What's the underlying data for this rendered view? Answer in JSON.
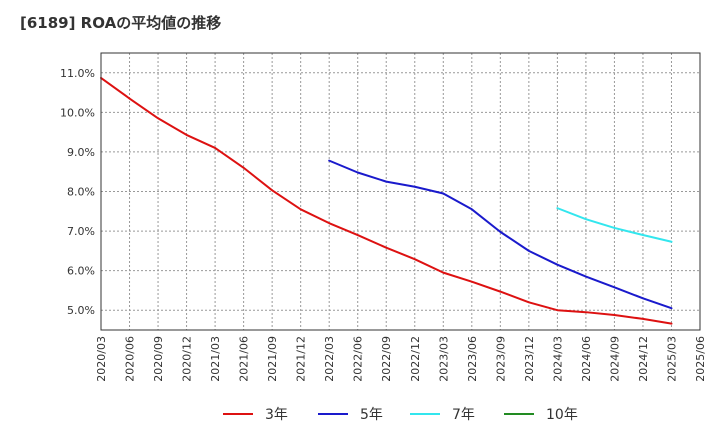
{
  "chart_data": {
    "type": "line",
    "title": "[6189]  ROAの平均値の推移",
    "xlabel": "",
    "ylabel": "",
    "ylim": [
      4.5,
      11.5
    ],
    "yticks": [
      5.0,
      6.0,
      7.0,
      8.0,
      9.0,
      10.0,
      11.0
    ],
    "ytick_labels": [
      "5.0%",
      "6.0%",
      "7.0%",
      "8.0%",
      "9.0%",
      "10.0%",
      "11.0%"
    ],
    "x_labels": [
      "2020/03",
      "2020/06",
      "2020/09",
      "2020/12",
      "2021/03",
      "2021/06",
      "2021/09",
      "2021/12",
      "2022/03",
      "2022/06",
      "2022/09",
      "2022/12",
      "2023/03",
      "2023/06",
      "2023/09",
      "2023/12",
      "2024/03",
      "2024/06",
      "2024/09",
      "2024/12",
      "2025/03",
      "2025/06"
    ],
    "grid": true,
    "legend_position": "bottom",
    "series": [
      {
        "name": "3年",
        "color": "#dd1111",
        "start_index": 0,
        "values": [
          10.87,
          10.35,
          9.85,
          9.43,
          9.1,
          8.6,
          8.03,
          7.55,
          7.2,
          6.9,
          6.58,
          6.29,
          5.95,
          5.72,
          5.47,
          5.2,
          5.0,
          4.95,
          4.88,
          4.78,
          4.66
        ]
      },
      {
        "name": "5年",
        "color": "#1a1acc",
        "start_index": 8,
        "values": [
          8.78,
          8.48,
          8.25,
          8.12,
          7.95,
          7.55,
          6.98,
          6.5,
          6.15,
          5.85,
          5.58,
          5.3,
          5.05
        ]
      },
      {
        "name": "7年",
        "color": "#33e6ee",
        "start_index": 16,
        "values": [
          7.58,
          7.3,
          7.08,
          6.9,
          6.73
        ]
      },
      {
        "name": "10年",
        "color": "#228b22",
        "start_index": 0,
        "values": []
      }
    ]
  }
}
